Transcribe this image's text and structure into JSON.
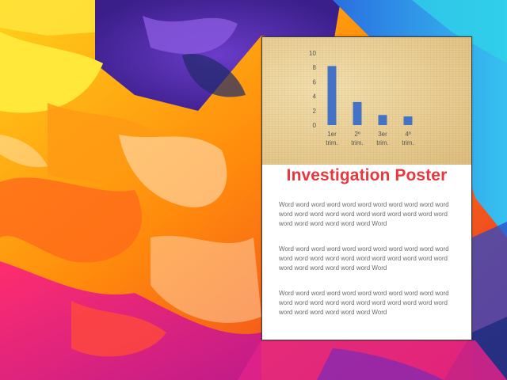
{
  "slide": {
    "poster_title": "Investigation Poster",
    "paragraphs": [
      "Word word word word word word word word word word word word word word word word word word word word word word word word word word word word Word",
      "Word word word word word word word word word word word word word word word word word word word word word word word word word word word word Word",
      "Word word word word word word word word word word word word word word word word word word word word word word word word word word word word Word"
    ]
  },
  "chart_data": {
    "type": "bar",
    "categories": [
      [
        "1er",
        "trim."
      ],
      [
        "2º",
        "trim."
      ],
      [
        "3er",
        "trim."
      ],
      [
        "4º",
        "trim."
      ]
    ],
    "values": [
      8.2,
      3.2,
      1.4,
      1.2
    ],
    "ylim": [
      0,
      10
    ],
    "yticks": [
      "0",
      "2",
      "4",
      "6",
      "8",
      "10"
    ],
    "bar_color": "#4472c4",
    "grid": false,
    "title": "",
    "xlabel": "",
    "ylabel": ""
  },
  "colors": {
    "title": "#e8383d",
    "body_text": "#6b6b6b"
  }
}
